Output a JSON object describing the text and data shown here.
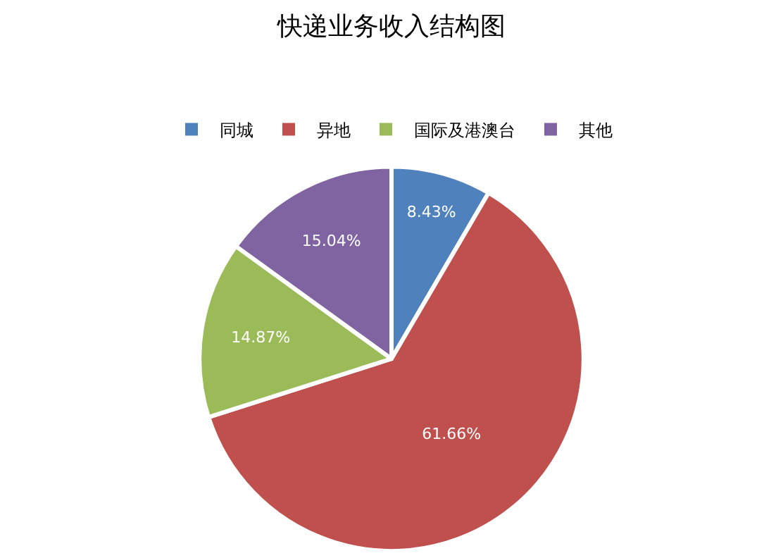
{
  "chart_data": {
    "type": "pie",
    "title": "快递业务收入结构图",
    "categories": [
      "同城",
      "异地",
      "国际及港澳台",
      "其他"
    ],
    "values": [
      8.43,
      61.66,
      14.87,
      15.04
    ],
    "colors": [
      "#4f81bd",
      "#c0504d",
      "#9bbb59",
      "#8064a2"
    ],
    "value_labels": [
      "8.43%",
      "61.66%",
      "14.87%",
      "15.04%"
    ],
    "legend": "top"
  }
}
